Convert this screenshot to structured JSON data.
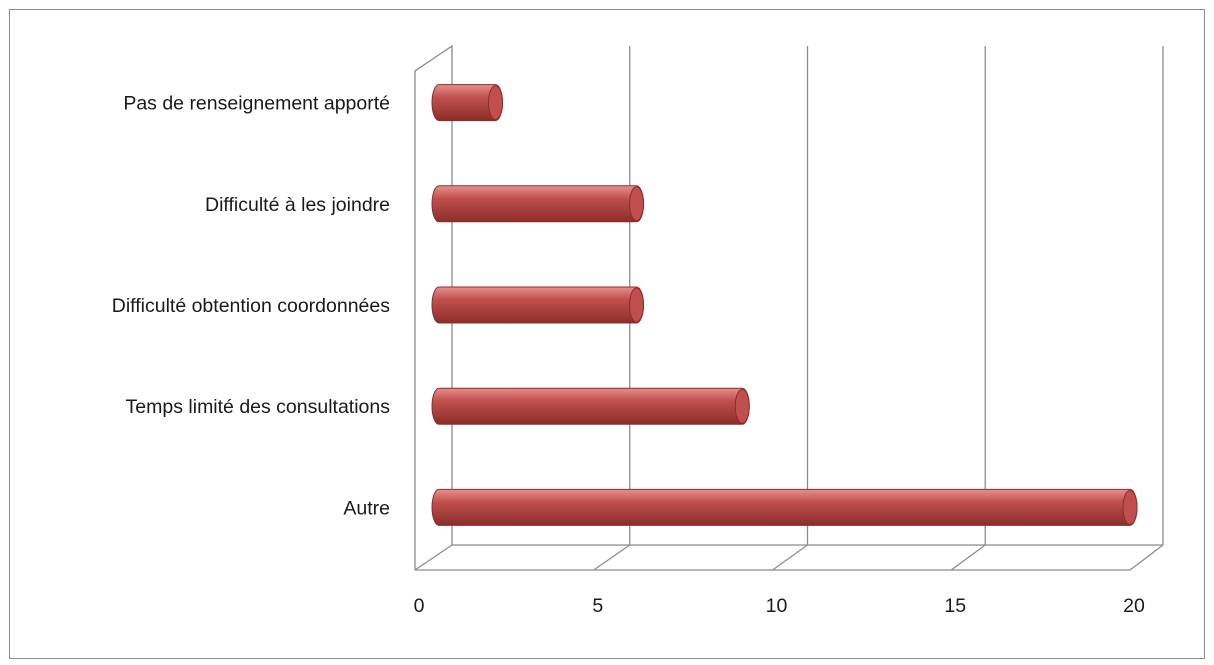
{
  "chart_data": {
    "type": "bar",
    "orientation": "horizontal",
    "style": "3d-cylinder",
    "categories": [
      "Autre",
      "Temps limité des consultations",
      "Difficulté obtention coordonnées",
      "Difficulté à les joindre",
      "Pas de renseignement apporté"
    ],
    "values": [
      20,
      9,
      6,
      6,
      2
    ],
    "xlim": [
      0,
      20
    ],
    "xticks": [
      "0",
      "5",
      "10",
      "15",
      "20"
    ],
    "grid": true,
    "legend": "none",
    "colors": {
      "bar": "#c0504d",
      "bar_light": "#e6908e",
      "bar_dark": "#8c2d2b",
      "grid": "#8c8c8c"
    }
  }
}
